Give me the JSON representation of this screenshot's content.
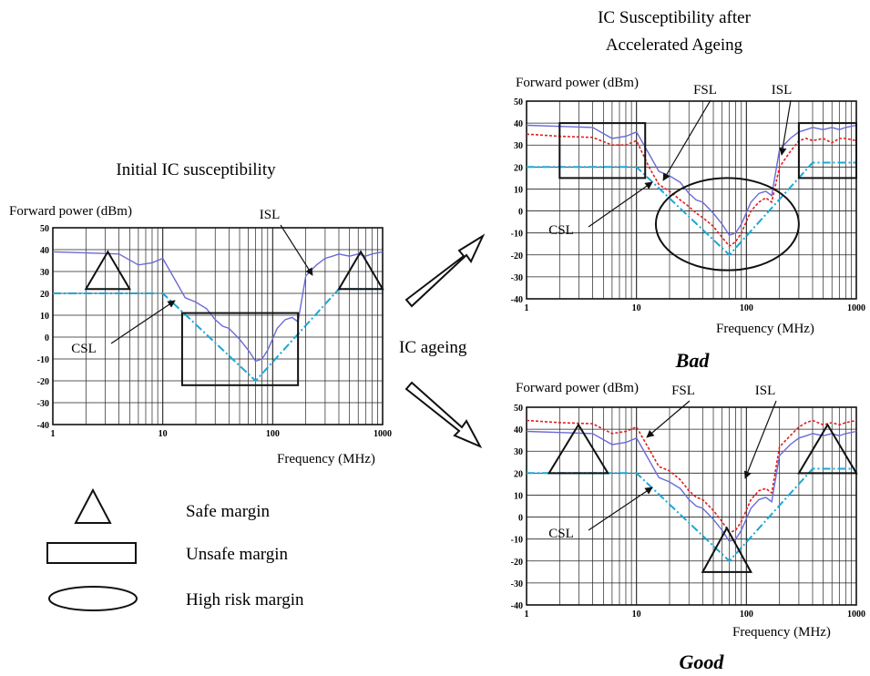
{
  "header": {
    "initial_title": "Initial IC susceptibility",
    "aged_title_line1": "IC Susceptibility after",
    "aged_title_line2": "Accelerated Ageing"
  },
  "center_label": "IC ageing",
  "legend": [
    {
      "shape": "triangle",
      "label": "Safe margin"
    },
    {
      "shape": "rectangle",
      "label": "Unsafe margin"
    },
    {
      "shape": "ellipse",
      "label": "High risk margin"
    }
  ],
  "colors": {
    "isl": "#6a6ad8",
    "fsl": "#e02020",
    "csl": "#18a8d8",
    "grid": "#222222"
  },
  "chart_data": [
    {
      "id": "initial",
      "type": "line",
      "ylabel": "Forward power (dBm)",
      "xlabel": "Frequency (MHz)",
      "x_scale": "log",
      "xlim": [
        1,
        1000
      ],
      "ylim": [
        -40,
        50
      ],
      "x_ticks": [
        "1",
        "10",
        "100",
        "1000"
      ],
      "y_ticks": [
        "50",
        "40",
        "30",
        "20",
        "10",
        "0",
        "-10",
        "-20",
        "-30",
        "-40"
      ],
      "grid": true,
      "annotations": [
        "ISL",
        "CSL"
      ],
      "series": [
        {
          "name": "ISL",
          "key": "isl",
          "x": [
            1,
            2,
            4,
            6,
            8,
            10,
            13,
            16,
            20,
            25,
            30,
            35,
            40,
            50,
            60,
            70,
            80,
            90,
            110,
            130,
            150,
            170,
            200,
            250,
            300,
            350,
            400,
            500,
            600,
            700,
            800,
            1000
          ],
          "y": [
            39,
            38.5,
            38,
            33,
            34,
            36,
            26,
            18,
            16,
            13,
            8,
            5,
            4,
            -1,
            -6,
            -11,
            -10,
            -6,
            4,
            8,
            9,
            7,
            28,
            33,
            36,
            37,
            38,
            37,
            38,
            37,
            38,
            39
          ]
        },
        {
          "name": "CSL",
          "key": "csl",
          "x": [
            1,
            10,
            70,
            400,
            1000
          ],
          "y": [
            20,
            20,
            -20,
            22,
            22
          ]
        }
      ],
      "markers": [
        {
          "shape": "triangle",
          "x_range": [
            2,
            5
          ],
          "y_range": [
            22,
            39
          ]
        },
        {
          "shape": "rectangle",
          "x_range": [
            15,
            170
          ],
          "y_range": [
            -22,
            11
          ]
        },
        {
          "shape": "triangle",
          "x_range": [
            400,
            1000
          ],
          "y_range": [
            22,
            39
          ]
        }
      ]
    },
    {
      "id": "aged-bad",
      "type": "line",
      "ylabel": "Forward power (dBm)",
      "xlabel": "Frequency (MHz)",
      "x_scale": "log",
      "xlim": [
        1,
        1000
      ],
      "ylim": [
        -40,
        50
      ],
      "x_ticks": [
        "1",
        "10",
        "100",
        "1000"
      ],
      "y_ticks": [
        "50",
        "40",
        "30",
        "20",
        "10",
        "0",
        "-10",
        "-20",
        "-30",
        "-40"
      ],
      "grid": true,
      "annotations": [
        "FSL",
        "ISL",
        "CSL"
      ],
      "verdict": "Bad",
      "series": [
        {
          "name": "ISL",
          "key": "isl",
          "x": [
            1,
            2,
            4,
            6,
            8,
            10,
            13,
            16,
            20,
            25,
            30,
            35,
            40,
            50,
            60,
            70,
            80,
            90,
            110,
            130,
            150,
            170,
            200,
            250,
            300,
            350,
            400,
            500,
            600,
            700,
            800,
            1000
          ],
          "y": [
            39,
            38.5,
            38,
            33,
            34,
            36,
            26,
            18,
            16,
            13,
            8,
            5,
            4,
            -1,
            -6,
            -11,
            -10,
            -6,
            4,
            8,
            9,
            7,
            28,
            33,
            36,
            37,
            38,
            37,
            38,
            37,
            38,
            39
          ]
        },
        {
          "name": "FSL",
          "key": "fsl",
          "x": [
            1,
            2,
            4,
            6,
            8,
            10,
            13,
            16,
            20,
            25,
            30,
            35,
            40,
            50,
            60,
            70,
            80,
            90,
            110,
            130,
            150,
            170,
            200,
            250,
            300,
            350,
            400,
            500,
            600,
            700,
            800,
            1000
          ],
          "y": [
            35,
            34,
            33.5,
            30,
            30,
            32,
            20,
            12,
            9,
            5,
            2,
            -1,
            -3,
            -7,
            -12,
            -16,
            -14,
            -10,
            0,
            4,
            6,
            4,
            20,
            27,
            32,
            33,
            32,
            33,
            31,
            33,
            33,
            32
          ]
        },
        {
          "name": "CSL",
          "key": "csl",
          "x": [
            1,
            10,
            70,
            400,
            1000
          ],
          "y": [
            20,
            20,
            -20,
            22,
            22
          ]
        }
      ],
      "markers": [
        {
          "shape": "rectangle",
          "x_range": [
            2,
            12
          ],
          "y_range": [
            15,
            40
          ]
        },
        {
          "shape": "ellipse",
          "x_range": [
            15,
            300
          ],
          "y_range": [
            -27,
            15
          ]
        },
        {
          "shape": "rectangle",
          "x_range": [
            300,
            1000
          ],
          "y_range": [
            15,
            40
          ]
        }
      ]
    },
    {
      "id": "aged-good",
      "type": "line",
      "ylabel": "Forward power (dBm)",
      "xlabel": "Frequency (MHz)",
      "x_scale": "log",
      "xlim": [
        1,
        1000
      ],
      "ylim": [
        -40,
        50
      ],
      "x_ticks": [
        "1",
        "10",
        "100",
        "1000"
      ],
      "y_ticks": [
        "50",
        "40",
        "30",
        "20",
        "10",
        "0",
        "-10",
        "-20",
        "-30",
        "-40"
      ],
      "grid": true,
      "annotations": [
        "FSL",
        "ISL",
        "CSL"
      ],
      "verdict": "Good",
      "series": [
        {
          "name": "ISL",
          "key": "isl",
          "x": [
            1,
            2,
            4,
            6,
            8,
            10,
            13,
            16,
            20,
            25,
            30,
            35,
            40,
            50,
            60,
            70,
            80,
            90,
            110,
            130,
            150,
            170,
            200,
            250,
            300,
            350,
            400,
            500,
            600,
            700,
            800,
            1000
          ],
          "y": [
            39,
            38.5,
            38,
            33,
            34,
            36,
            26,
            18,
            16,
            13,
            8,
            5,
            4,
            -1,
            -6,
            -11,
            -10,
            -6,
            4,
            8,
            9,
            7,
            28,
            33,
            36,
            37,
            38,
            37,
            38,
            37,
            38,
            39
          ]
        },
        {
          "name": "FSL",
          "key": "fsl",
          "x": [
            1,
            2,
            4,
            6,
            8,
            10,
            13,
            16,
            20,
            25,
            30,
            35,
            40,
            50,
            60,
            70,
            80,
            90,
            110,
            130,
            150,
            170,
            200,
            250,
            300,
            350,
            400,
            500,
            600,
            700,
            800,
            1000
          ],
          "y": [
            44,
            43,
            42.5,
            38,
            39,
            41,
            31,
            23,
            21,
            17,
            12,
            9,
            8,
            3,
            -2,
            -7,
            -6,
            -2,
            8,
            12,
            13,
            11,
            32,
            37,
            41,
            43,
            44,
            42,
            43,
            42,
            43,
            44
          ]
        },
        {
          "name": "CSL",
          "key": "csl",
          "x": [
            1,
            10,
            70,
            400,
            1000
          ],
          "y": [
            20,
            20,
            -20,
            22,
            22
          ]
        }
      ],
      "markers": [
        {
          "shape": "triangle",
          "x_range": [
            1.6,
            5.5
          ],
          "y_range": [
            20,
            42
          ]
        },
        {
          "shape": "triangle",
          "x_range": [
            40,
            110
          ],
          "y_range": [
            -25,
            -5
          ]
        },
        {
          "shape": "triangle",
          "x_range": [
            300,
            1000
          ],
          "y_range": [
            20,
            42
          ]
        }
      ]
    }
  ]
}
